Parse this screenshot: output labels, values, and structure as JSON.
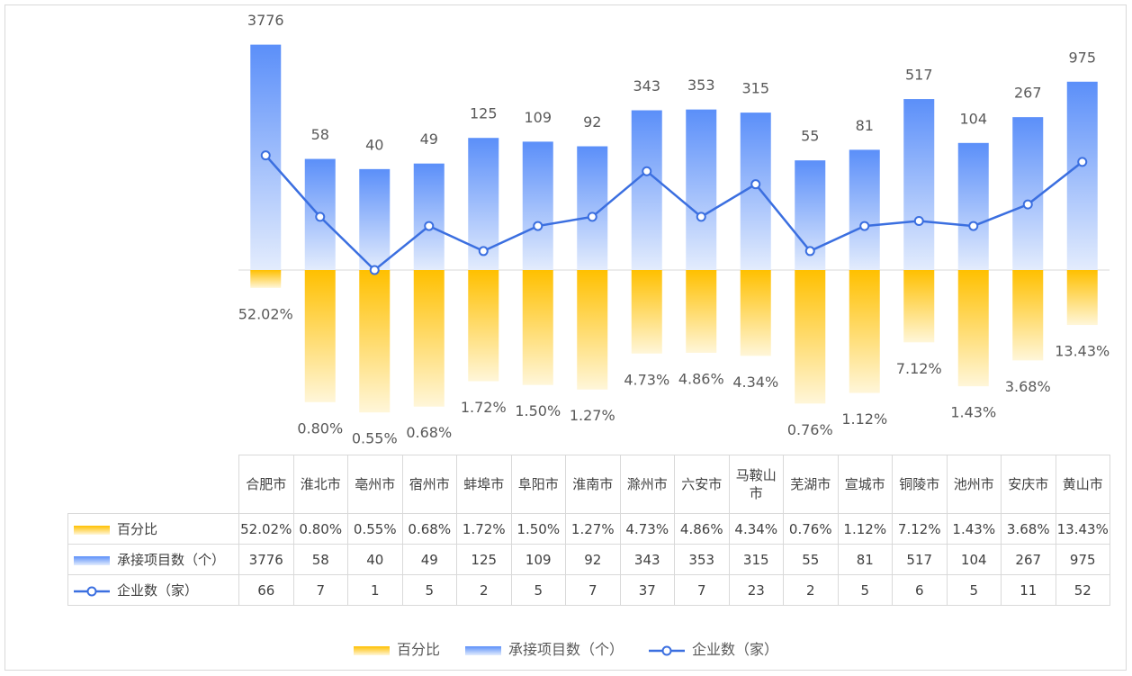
{
  "chart_data": {
    "type": "bar",
    "categories": [
      "合肥市",
      "淮北市",
      "亳州市",
      "宿州市",
      "蚌埠市",
      "阜阳市",
      "淮南市",
      "滁州市",
      "六安市",
      "马鞍山市",
      "芜湖市",
      "宣城市",
      "铜陵市",
      "池州市",
      "安庆市",
      "黄山市"
    ],
    "log_scale": true,
    "ylim": [
      1,
      10000
    ],
    "y2lim": [
      0.1,
      100
    ],
    "legend": "bottom",
    "series": [
      {
        "name": "百分比",
        "type": "bar",
        "axis": "y2",
        "color": "#ffc000",
        "values": [
          52.02,
          0.8,
          0.55,
          0.68,
          1.72,
          1.5,
          1.27,
          4.73,
          4.86,
          4.34,
          0.76,
          1.12,
          7.12,
          1.43,
          3.68,
          13.43
        ],
        "value_labels": [
          "52.02%",
          "0.80%",
          "0.55%",
          "0.68%",
          "1.72%",
          "1.50%",
          "1.27%",
          "4.73%",
          "4.86%",
          "4.34%",
          "0.76%",
          "1.12%",
          "7.12%",
          "1.43%",
          "3.68%",
          "13.43%"
        ]
      },
      {
        "name": "承接项目数（个）",
        "type": "bar",
        "color": "#5b8ff9",
        "values": [
          3776,
          58,
          40,
          49,
          125,
          109,
          92,
          343,
          353,
          315,
          55,
          81,
          517,
          104,
          267,
          975
        ]
      },
      {
        "name": "企业数（家）",
        "type": "line",
        "color": "#3b6fe0",
        "values": [
          66,
          7,
          1,
          5,
          2,
          5,
          7,
          37,
          7,
          23,
          2,
          5,
          6,
          5,
          11,
          52
        ]
      }
    ]
  }
}
